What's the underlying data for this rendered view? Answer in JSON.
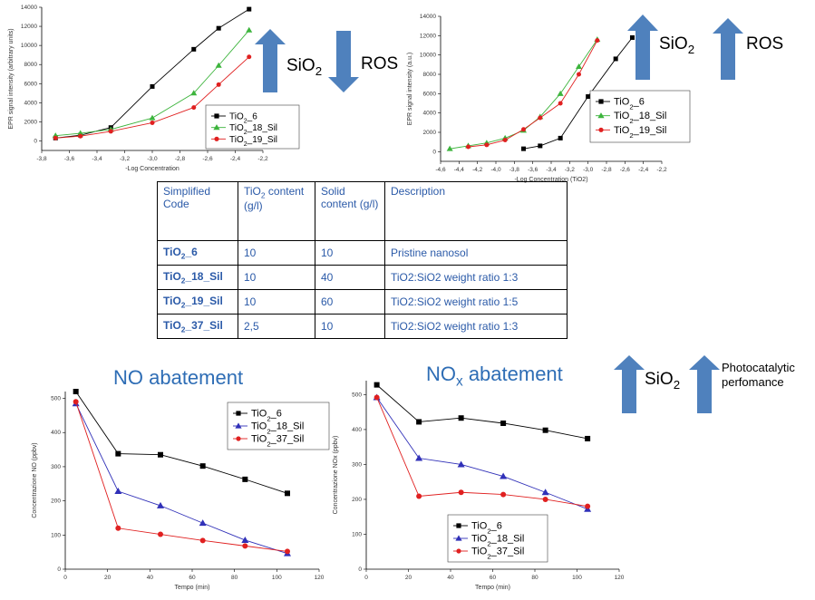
{
  "colors": {
    "black": "#000000",
    "green": "#3cb43c",
    "red": "#e02020",
    "blue": "#3030b8",
    "arrow": "#4f81bd",
    "title": "#2e6db5"
  },
  "arrows": {
    "top_left": {
      "up_label": "SiO",
      "up_sub": "2",
      "down_label": "ROS"
    },
    "top_right": {
      "up_label": "SiO",
      "up_sub": "2",
      "up2_label": "ROS"
    },
    "bottom": {
      "up_label": "SiO",
      "up_sub": "2",
      "up2_label": "Photocatalytic perfomance"
    }
  },
  "table": {
    "headers": [
      {
        "main": "Simplified Code",
        "sub": ""
      },
      {
        "main": "TiO",
        "sub": "2",
        "rest": " content (g/l)"
      },
      {
        "main": "Solid content (g/l)"
      },
      {
        "main": "Description"
      }
    ],
    "rows": [
      {
        "code": "TiO",
        "code_sub": "2",
        "code_rest": "_6",
        "tio2": "10",
        "solid": "10",
        "desc": "Pristine nanosol"
      },
      {
        "code": "TiO",
        "code_sub": "2",
        "code_rest": "_18_Sil",
        "tio2": "10",
        "solid": "40",
        "desc": "TiO2:SiO2 weight ratio 1:3"
      },
      {
        "code": "TiO",
        "code_sub": "2",
        "code_rest": "_19_Sil",
        "tio2": "10",
        "solid": "60",
        "desc": "TiO2:SiO2 weight ratio 1:5"
      },
      {
        "code": "TiO",
        "code_sub": "2",
        "code_rest": "_37_Sil",
        "tio2": "2,5",
        "solid": "10",
        "desc": "TiO2:SiO2 weight ratio 1:3"
      }
    ]
  },
  "chart_data": [
    {
      "type": "line",
      "title": "",
      "xlabel": "-Log Concentration",
      "ylabel": "EPR signal intensity (arbitrary units)",
      "xlim": [
        -3.8,
        -2.2
      ],
      "ylim": [
        -1000,
        14000
      ],
      "xticks": [
        "-3,8",
        "-3,6",
        "-3,4",
        "-3,2",
        "-3,0",
        "-2,8",
        "-2,6",
        "-2,4",
        "-2,2"
      ],
      "xtick_values": [
        -3.8,
        -3.6,
        -3.4,
        -3.2,
        -3.0,
        -2.8,
        -2.6,
        -2.4,
        -2.2
      ],
      "yticks": [
        0,
        2000,
        4000,
        6000,
        8000,
        10000,
        12000,
        14000
      ],
      "legend_position": "bottom-right",
      "series": [
        {
          "name": "TiO2_6",
          "marker": "square",
          "color": "#000000",
          "x": [
            -3.7,
            -3.52,
            -3.3,
            -3.0,
            -2.7,
            -2.52,
            -2.3
          ],
          "y": [
            300,
            600,
            1400,
            5700,
            9600,
            11800,
            13800
          ]
        },
        {
          "name": "TiO2_18_Sil",
          "marker": "triangle",
          "color": "#3cb43c",
          "x": [
            -3.7,
            -3.52,
            -3.3,
            -3.0,
            -2.7,
            -2.52,
            -2.3
          ],
          "y": [
            550,
            800,
            1200,
            2400,
            5000,
            7900,
            11600
          ]
        },
        {
          "name": "TiO2_19_Sil",
          "marker": "circle",
          "color": "#e02020",
          "x": [
            -3.7,
            -3.52,
            -3.3,
            -3.0,
            -2.7,
            -2.52,
            -2.3
          ],
          "y": [
            300,
            500,
            1000,
            1900,
            3500,
            5900,
            8800
          ]
        }
      ]
    },
    {
      "type": "line",
      "title": "",
      "xlabel": "-Log Concentration (TiO2)",
      "ylabel": "EPR signal intensity (a.u.)",
      "xlim": [
        -4.6,
        -2.2
      ],
      "ylim": [
        -1000,
        14000
      ],
      "xticks": [
        "-4,6",
        "-4,4",
        "-4,2",
        "-4,0",
        "-3,8",
        "-3,6",
        "-3,4",
        "-3,2",
        "-3,0",
        "-2,8",
        "-2,6",
        "-2,4",
        "-2,2"
      ],
      "xtick_values": [
        -4.6,
        -4.4,
        -4.2,
        -4.0,
        -3.8,
        -3.6,
        -3.4,
        -3.2,
        -3.0,
        -2.8,
        -2.6,
        -2.4,
        -2.2
      ],
      "yticks": [
        0,
        2000,
        4000,
        6000,
        8000,
        10000,
        12000,
        14000
      ],
      "legend_position": "bottom-right",
      "series": [
        {
          "name": "TiO2_6",
          "marker": "square",
          "color": "#000000",
          "x": [
            -3.7,
            -3.52,
            -3.3,
            -3.0,
            -2.7,
            -2.52
          ],
          "y": [
            300,
            600,
            1400,
            5700,
            9600,
            11800
          ]
        },
        {
          "name": "TiO2_18_Sil",
          "marker": "triangle",
          "color": "#3cb43c",
          "x": [
            -4.5,
            -4.3,
            -4.1,
            -3.9,
            -3.7,
            -3.52,
            -3.3,
            -3.1,
            -2.9
          ],
          "y": [
            300,
            600,
            900,
            1400,
            2200,
            3600,
            6000,
            8800,
            11600
          ]
        },
        {
          "name": "TiO2_19_Sil",
          "marker": "circle",
          "color": "#e02020",
          "x": [
            -4.3,
            -4.1,
            -3.9,
            -3.7,
            -3.52,
            -3.3,
            -3.1,
            -2.9
          ],
          "y": [
            500,
            700,
            1200,
            2300,
            3500,
            5000,
            8000,
            11500
          ]
        }
      ]
    },
    {
      "type": "line",
      "title": "NO abatement",
      "xlabel": "Tempo (min)",
      "ylabel": "Concentrazione NO (ppbv)",
      "xlim": [
        0,
        120
      ],
      "ylim": [
        0,
        520
      ],
      "xticks": [
        0,
        20,
        40,
        60,
        80,
        100,
        120
      ],
      "yticks": [
        0,
        100,
        200,
        300,
        400,
        500
      ],
      "legend_position": "top-right",
      "series": [
        {
          "name": "TiO2_6",
          "marker": "square",
          "color": "#000000",
          "x": [
            5,
            25,
            45,
            65,
            85,
            105
          ],
          "y": [
            520,
            338,
            335,
            302,
            263,
            222
          ]
        },
        {
          "name": "TiO2_18_Sil",
          "marker": "triangle",
          "color": "#3030b8",
          "x": [
            5,
            25,
            45,
            65,
            85,
            105
          ],
          "y": [
            485,
            228,
            186,
            135,
            85,
            46
          ]
        },
        {
          "name": "TiO2_37_Sil",
          "marker": "circle",
          "color": "#e02020",
          "x": [
            5,
            25,
            45,
            65,
            85,
            105
          ],
          "y": [
            490,
            120,
            102,
            84,
            68,
            52
          ]
        }
      ]
    },
    {
      "type": "line",
      "title": "NOx abatement",
      "xlabel": "Tempo (min)",
      "ylabel": "Concentrazione NOx (ppbv)",
      "xlim": [
        0,
        120
      ],
      "ylim": [
        0,
        540
      ],
      "xticks": [
        0,
        20,
        40,
        60,
        80,
        100,
        120
      ],
      "yticks": [
        0,
        100,
        200,
        300,
        400,
        500
      ],
      "legend_position": "bottom-left",
      "series": [
        {
          "name": "TiO2_6",
          "marker": "square",
          "color": "#000000",
          "x": [
            5,
            25,
            45,
            65,
            85,
            105
          ],
          "y": [
            528,
            422,
            433,
            418,
            398,
            374
          ]
        },
        {
          "name": "TiO2_18_Sil",
          "marker": "triangle",
          "color": "#3030b8",
          "x": [
            5,
            25,
            45,
            65,
            85,
            105
          ],
          "y": [
            492,
            318,
            300,
            266,
            220,
            172
          ]
        },
        {
          "name": "TiO2_37_Sil",
          "marker": "circle",
          "color": "#e02020",
          "x": [
            5,
            25,
            45,
            65,
            85,
            105
          ],
          "y": [
            492,
            209,
            220,
            214,
            200,
            180
          ]
        }
      ]
    }
  ]
}
